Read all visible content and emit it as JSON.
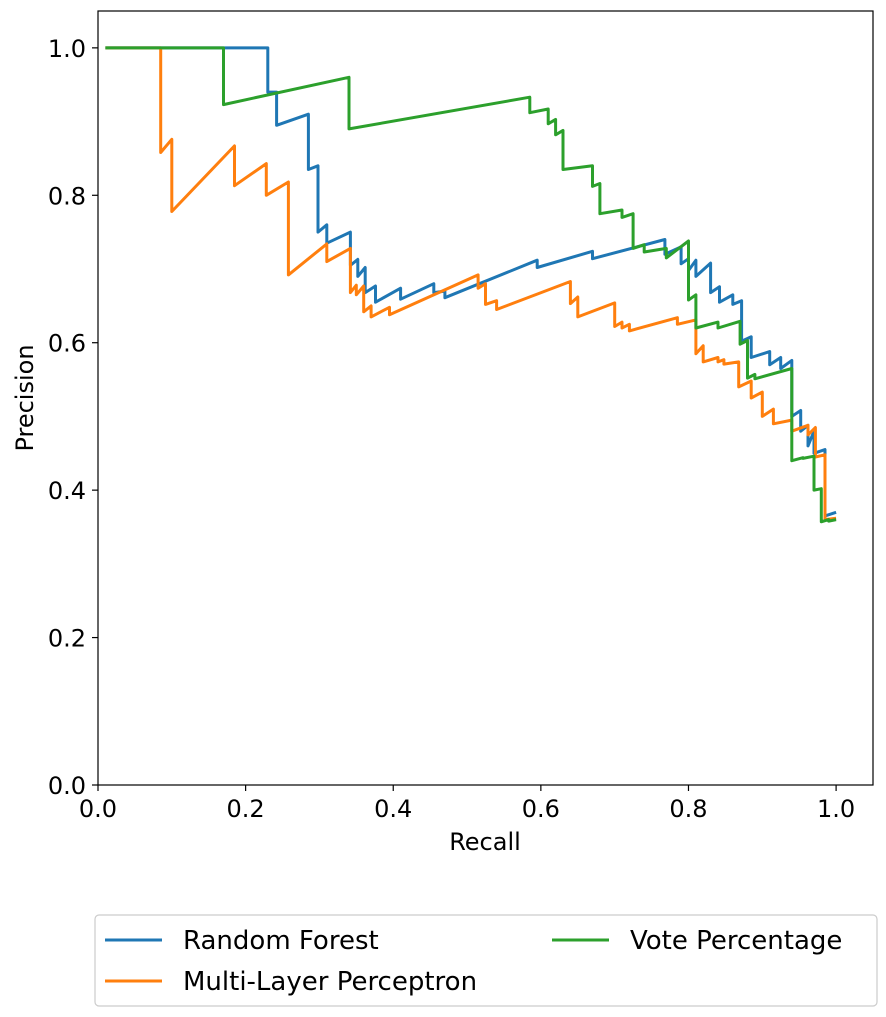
{
  "chart_data": {
    "type": "line",
    "title": "",
    "xlabel": "Recall",
    "ylabel": "Precision",
    "xlim": [
      0.0,
      1.05
    ],
    "ylim": [
      0.0,
      1.05
    ],
    "xticks": [
      "0.0",
      "0.2",
      "0.4",
      "0.6",
      "0.8",
      "1.0"
    ],
    "yticks": [
      "0.0",
      "0.2",
      "0.4",
      "0.6",
      "0.8",
      "1.0"
    ],
    "grid": false,
    "legend_position": "bottom-outside",
    "series": [
      {
        "name": "Random Forest",
        "color": "#1f77b4",
        "points": [
          [
            0.01,
            1.0
          ],
          [
            0.23,
            1.0
          ],
          [
            0.23,
            0.94
          ],
          [
            0.242,
            0.94
          ],
          [
            0.242,
            0.895
          ],
          [
            0.285,
            0.91
          ],
          [
            0.285,
            0.835
          ],
          [
            0.298,
            0.84
          ],
          [
            0.298,
            0.75
          ],
          [
            0.31,
            0.76
          ],
          [
            0.31,
            0.735
          ],
          [
            0.342,
            0.75
          ],
          [
            0.342,
            0.705
          ],
          [
            0.352,
            0.713
          ],
          [
            0.352,
            0.69
          ],
          [
            0.362,
            0.702
          ],
          [
            0.362,
            0.668
          ],
          [
            0.376,
            0.677
          ],
          [
            0.376,
            0.655
          ],
          [
            0.41,
            0.674
          ],
          [
            0.41,
            0.659
          ],
          [
            0.455,
            0.68
          ],
          [
            0.455,
            0.668
          ],
          [
            0.47,
            0.67
          ],
          [
            0.47,
            0.661
          ],
          [
            0.595,
            0.712
          ],
          [
            0.595,
            0.702
          ],
          [
            0.67,
            0.724
          ],
          [
            0.67,
            0.714
          ],
          [
            0.768,
            0.74
          ],
          [
            0.768,
            0.72
          ],
          [
            0.79,
            0.73
          ],
          [
            0.79,
            0.707
          ],
          [
            0.8,
            0.714
          ],
          [
            0.8,
            0.698
          ],
          [
            0.81,
            0.712
          ],
          [
            0.81,
            0.69
          ],
          [
            0.83,
            0.708
          ],
          [
            0.83,
            0.668
          ],
          [
            0.842,
            0.676
          ],
          [
            0.842,
            0.655
          ],
          [
            0.86,
            0.665
          ],
          [
            0.86,
            0.652
          ],
          [
            0.872,
            0.657
          ],
          [
            0.872,
            0.602
          ],
          [
            0.885,
            0.608
          ],
          [
            0.885,
            0.58
          ],
          [
            0.91,
            0.588
          ],
          [
            0.91,
            0.57
          ],
          [
            0.925,
            0.58
          ],
          [
            0.925,
            0.565
          ],
          [
            0.94,
            0.576
          ],
          [
            0.94,
            0.5
          ],
          [
            0.952,
            0.508
          ],
          [
            0.952,
            0.48
          ],
          [
            0.962,
            0.488
          ],
          [
            0.962,
            0.46
          ],
          [
            0.97,
            0.48
          ],
          [
            0.97,
            0.45
          ],
          [
            0.985,
            0.455
          ],
          [
            0.985,
            0.365
          ],
          [
            1.0,
            0.37
          ]
        ]
      },
      {
        "name": "Multi-Layer Perceptron",
        "color": "#ff7f0e",
        "points": [
          [
            0.01,
            1.0
          ],
          [
            0.085,
            1.0
          ],
          [
            0.085,
            0.858
          ],
          [
            0.1,
            0.876
          ],
          [
            0.1,
            0.778
          ],
          [
            0.185,
            0.867
          ],
          [
            0.185,
            0.813
          ],
          [
            0.228,
            0.843
          ],
          [
            0.228,
            0.8
          ],
          [
            0.258,
            0.818
          ],
          [
            0.258,
            0.692
          ],
          [
            0.31,
            0.734
          ],
          [
            0.31,
            0.71
          ],
          [
            0.342,
            0.728
          ],
          [
            0.342,
            0.668
          ],
          [
            0.35,
            0.678
          ],
          [
            0.35,
            0.665
          ],
          [
            0.36,
            0.677
          ],
          [
            0.36,
            0.642
          ],
          [
            0.37,
            0.65
          ],
          [
            0.37,
            0.635
          ],
          [
            0.395,
            0.648
          ],
          [
            0.395,
            0.638
          ],
          [
            0.515,
            0.692
          ],
          [
            0.515,
            0.674
          ],
          [
            0.525,
            0.68
          ],
          [
            0.525,
            0.652
          ],
          [
            0.54,
            0.657
          ],
          [
            0.54,
            0.645
          ],
          [
            0.64,
            0.683
          ],
          [
            0.64,
            0.653
          ],
          [
            0.65,
            0.662
          ],
          [
            0.65,
            0.635
          ],
          [
            0.7,
            0.654
          ],
          [
            0.7,
            0.622
          ],
          [
            0.71,
            0.628
          ],
          [
            0.71,
            0.62
          ],
          [
            0.72,
            0.625
          ],
          [
            0.72,
            0.616
          ],
          [
            0.785,
            0.634
          ],
          [
            0.785,
            0.625
          ],
          [
            0.81,
            0.631
          ],
          [
            0.81,
            0.585
          ],
          [
            0.82,
            0.596
          ],
          [
            0.82,
            0.574
          ],
          [
            0.84,
            0.58
          ],
          [
            0.84,
            0.574
          ],
          [
            0.848,
            0.577
          ],
          [
            0.848,
            0.571
          ],
          [
            0.868,
            0.574
          ],
          [
            0.868,
            0.54
          ],
          [
            0.885,
            0.548
          ],
          [
            0.885,
            0.525
          ],
          [
            0.9,
            0.533
          ],
          [
            0.9,
            0.5
          ],
          [
            0.915,
            0.51
          ],
          [
            0.915,
            0.49
          ],
          [
            0.94,
            0.495
          ],
          [
            0.94,
            0.48
          ],
          [
            0.962,
            0.488
          ],
          [
            0.962,
            0.475
          ],
          [
            0.972,
            0.485
          ],
          [
            0.972,
            0.445
          ],
          [
            0.985,
            0.448
          ],
          [
            0.985,
            0.36
          ],
          [
            1.0,
            0.362
          ]
        ]
      },
      {
        "name": "Vote Percentage",
        "color": "#2ca02c",
        "points": [
          [
            0.01,
            1.0
          ],
          [
            0.17,
            1.0
          ],
          [
            0.17,
            0.923
          ],
          [
            0.34,
            0.96
          ],
          [
            0.34,
            0.89
          ],
          [
            0.585,
            0.933
          ],
          [
            0.585,
            0.912
          ],
          [
            0.61,
            0.917
          ],
          [
            0.61,
            0.897
          ],
          [
            0.62,
            0.903
          ],
          [
            0.62,
            0.882
          ],
          [
            0.63,
            0.888
          ],
          [
            0.63,
            0.835
          ],
          [
            0.67,
            0.84
          ],
          [
            0.67,
            0.812
          ],
          [
            0.68,
            0.816
          ],
          [
            0.68,
            0.775
          ],
          [
            0.71,
            0.78
          ],
          [
            0.71,
            0.77
          ],
          [
            0.725,
            0.775
          ],
          [
            0.725,
            0.728
          ],
          [
            0.74,
            0.733
          ],
          [
            0.74,
            0.723
          ],
          [
            0.77,
            0.728
          ],
          [
            0.77,
            0.715
          ],
          [
            0.8,
            0.738
          ],
          [
            0.8,
            0.658
          ],
          [
            0.81,
            0.665
          ],
          [
            0.81,
            0.62
          ],
          [
            0.84,
            0.628
          ],
          [
            0.84,
            0.62
          ],
          [
            0.87,
            0.629
          ],
          [
            0.87,
            0.598
          ],
          [
            0.88,
            0.603
          ],
          [
            0.88,
            0.552
          ],
          [
            0.89,
            0.557
          ],
          [
            0.89,
            0.551
          ],
          [
            0.94,
            0.565
          ],
          [
            0.94,
            0.44
          ],
          [
            0.955,
            0.444
          ],
          [
            0.955,
            0.443
          ],
          [
            0.97,
            0.446
          ],
          [
            0.97,
            0.4
          ],
          [
            0.98,
            0.402
          ],
          [
            0.98,
            0.357
          ],
          [
            0.99,
            0.36
          ],
          [
            0.99,
            0.358
          ],
          [
            1.0,
            0.36
          ]
        ]
      }
    ]
  }
}
